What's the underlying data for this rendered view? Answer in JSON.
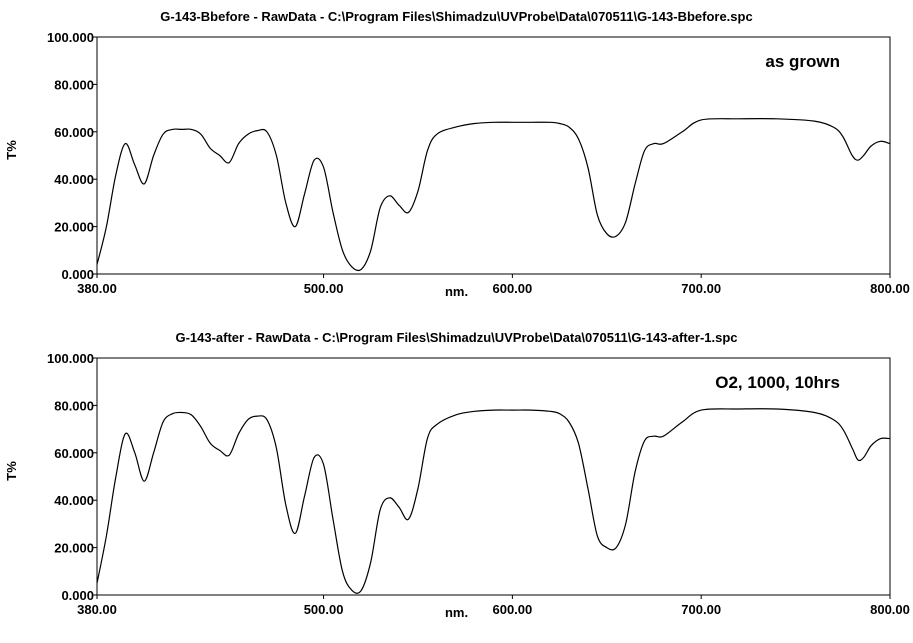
{
  "chart_data": [
    {
      "type": "line",
      "title": "G-143-Bbefore - RawData - C:\\Program Files\\Shimadzu\\UVProbe\\Data\\070511\\G-143-Bbefore.spc",
      "xlabel": "nm.",
      "ylabel": "T%",
      "annotation": "as grown",
      "xlim": [
        380,
        800
      ],
      "ylim": [
        0,
        100
      ],
      "xticks": [
        "380.00",
        "500.00",
        "600.00",
        "700.00",
        "800.00"
      ],
      "xtick_values": [
        380,
        500,
        600,
        700,
        800
      ],
      "yticks": [
        "0.000",
        "20.000",
        "40.000",
        "60.000",
        "80.000",
        "100.000"
      ],
      "ytick_values": [
        0,
        20,
        40,
        60,
        80,
        100
      ],
      "series": [
        {
          "x": [
            380,
            385,
            390,
            395,
            400,
            405,
            410,
            415,
            420,
            425,
            430,
            435,
            440,
            445,
            450,
            455,
            460,
            465,
            470,
            475,
            480,
            485,
            490,
            495,
            500,
            505,
            510,
            515,
            520,
            525,
            530,
            535,
            540,
            545,
            550,
            555,
            560,
            570,
            580,
            590,
            600,
            610,
            620,
            625,
            630,
            635,
            640,
            645,
            650,
            655,
            660,
            665,
            670,
            675,
            680,
            690,
            700,
            720,
            740,
            760,
            770,
            775,
            780,
            783,
            786,
            790,
            795,
            800
          ],
          "y": [
            4,
            20,
            42,
            55,
            46,
            38,
            50,
            59,
            61,
            61,
            61,
            59,
            53,
            50,
            47,
            55,
            59,
            60.5,
            60,
            50,
            30,
            20,
            34,
            48,
            45,
            26,
            10,
            3,
            2,
            10,
            28,
            33,
            29,
            26,
            35,
            52,
            59,
            62,
            63.5,
            64,
            64,
            64,
            64,
            63.5,
            62,
            57,
            45,
            25,
            17,
            16,
            22,
            38,
            52,
            55,
            55,
            60,
            65,
            65.5,
            65.5,
            64.5,
            62,
            58,
            50,
            48,
            50,
            54,
            56,
            55
          ]
        }
      ]
    },
    {
      "type": "line",
      "title": "G-143-after - RawData - C:\\Program Files\\Shimadzu\\UVProbe\\Data\\070511\\G-143-after-1.spc",
      "xlabel": "nm.",
      "ylabel": "T%",
      "annotation": "O2, 1000, 10hrs",
      "xlim": [
        380,
        800
      ],
      "ylim": [
        0,
        100
      ],
      "xticks": [
        "380.00",
        "500.00",
        "600.00",
        "700.00",
        "800.00"
      ],
      "xtick_values": [
        380,
        500,
        600,
        700,
        800
      ],
      "yticks": [
        "0.000",
        "20.000",
        "40.000",
        "60.000",
        "80.000",
        "100.000"
      ],
      "ytick_values": [
        0,
        20,
        40,
        60,
        80,
        100
      ],
      "series": [
        {
          "x": [
            380,
            385,
            390,
            395,
            400,
            405,
            410,
            415,
            420,
            425,
            430,
            435,
            440,
            445,
            450,
            455,
            460,
            465,
            470,
            475,
            480,
            485,
            490,
            495,
            500,
            505,
            510,
            515,
            520,
            525,
            530,
            535,
            540,
            545,
            550,
            555,
            560,
            570,
            580,
            590,
            600,
            610,
            620,
            625,
            630,
            635,
            640,
            645,
            650,
            655,
            660,
            665,
            670,
            675,
            680,
            690,
            700,
            720,
            740,
            760,
            770,
            775,
            780,
            783,
            786,
            790,
            795,
            800
          ],
          "y": [
            5,
            25,
            50,
            68,
            60,
            48,
            60,
            73,
            76.5,
            77,
            76,
            71,
            64,
            61,
            59,
            68,
            74,
            75.5,
            74,
            62,
            38,
            26,
            42,
            58,
            55,
            32,
            10,
            2,
            2,
            14,
            36,
            41,
            37,
            32,
            45,
            66,
            72,
            76,
            77.5,
            78,
            78,
            78,
            77.5,
            76.5,
            73,
            64,
            45,
            25,
            20,
            20,
            30,
            52,
            65,
            67,
            67,
            73,
            78,
            78.5,
            78.5,
            77,
            74,
            70,
            62,
            57,
            58,
            63,
            66,
            66
          ]
        }
      ]
    }
  ]
}
